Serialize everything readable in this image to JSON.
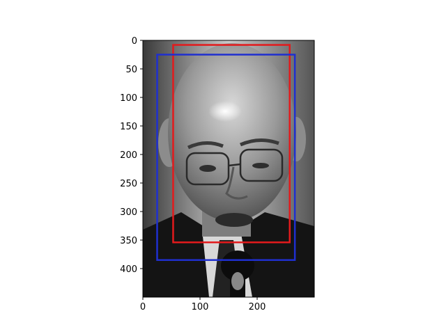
{
  "chart_data": {
    "type": "image",
    "image_description_icon": "grayscale-portrait-photo",
    "xlim": [
      0,
      300
    ],
    "ylim": [
      450,
      0
    ],
    "x_ticks": [
      0,
      100,
      200
    ],
    "y_ticks": [
      0,
      50,
      100,
      150,
      200,
      250,
      300,
      350,
      400
    ],
    "title": "",
    "xlabel": "",
    "ylabel": "",
    "grid": false,
    "boxes": [
      {
        "color": "#e31a1c",
        "x1": 53,
        "y1": 8,
        "x2": 257,
        "y2": 354
      },
      {
        "color": "#1f2fd0",
        "x1": 25,
        "y1": 25,
        "x2": 266,
        "y2": 385
      }
    ]
  }
}
